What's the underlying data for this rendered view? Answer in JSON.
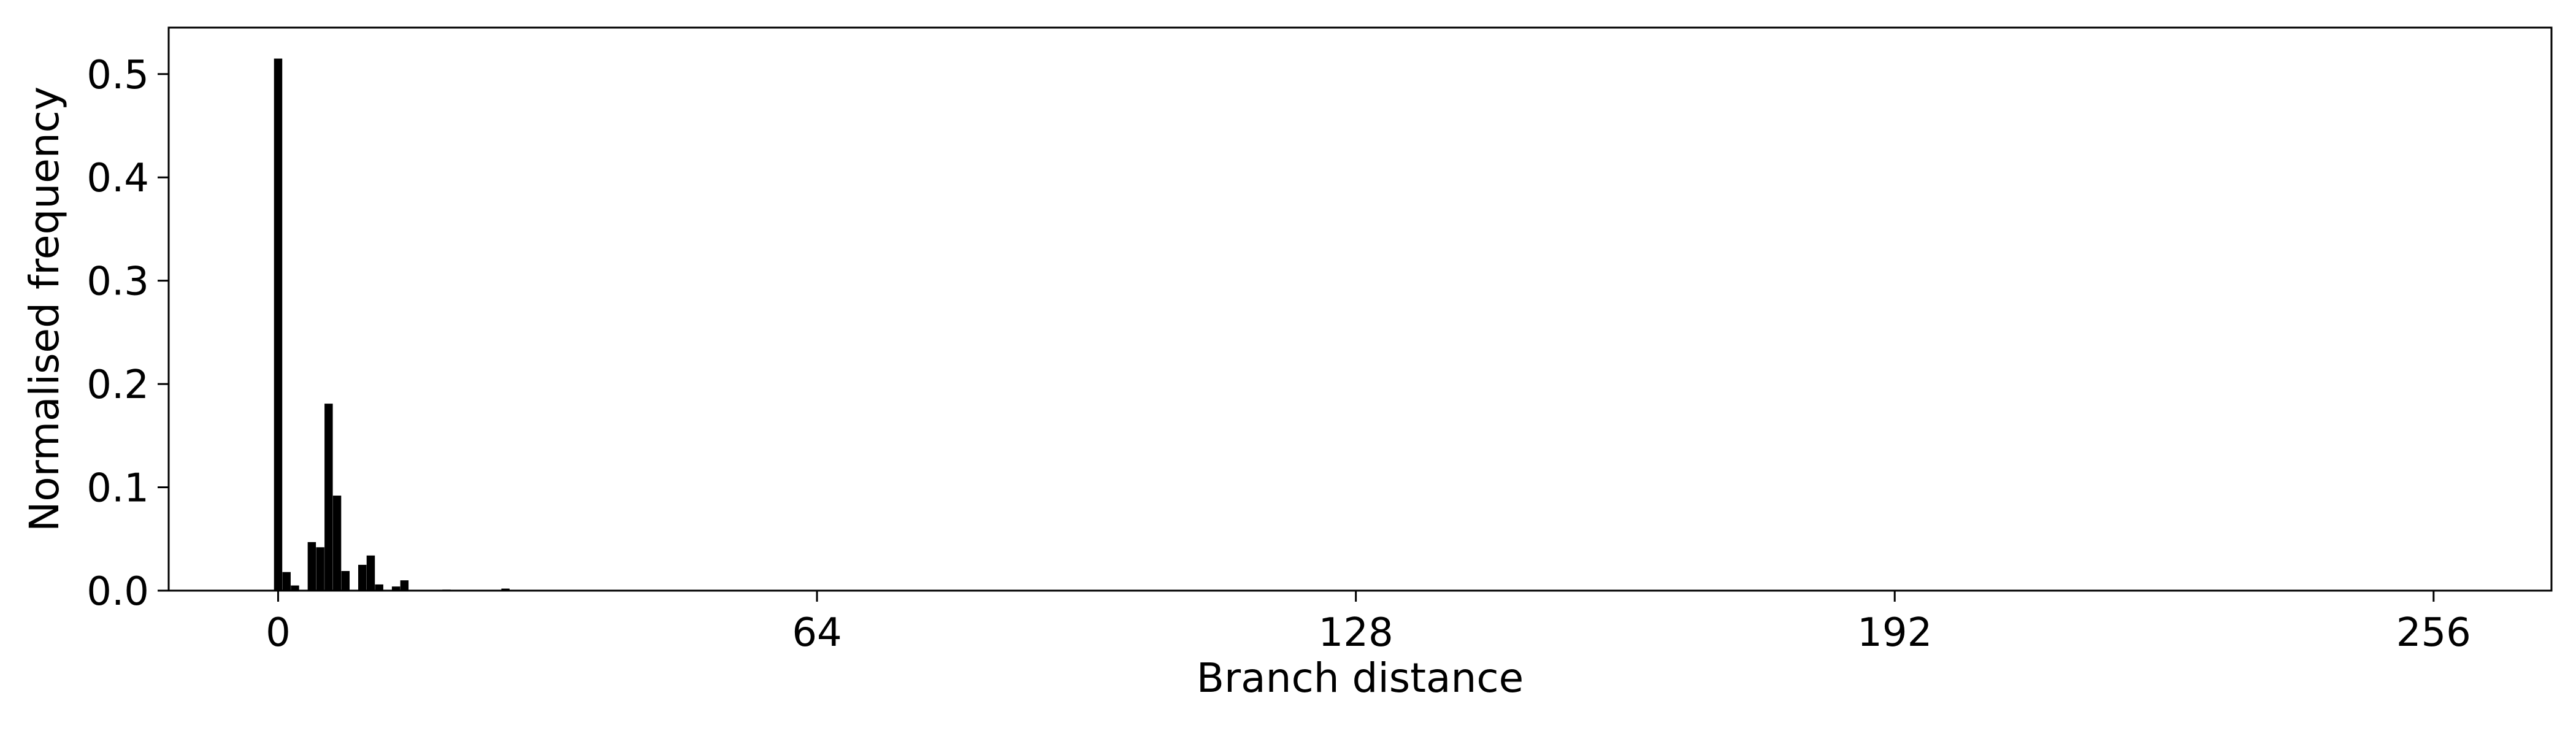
{
  "chart_data": {
    "type": "bar",
    "title": "",
    "xlabel": "Branch distance",
    "ylabel": "Normalised frequency",
    "xlim": [
      -13,
      270
    ],
    "ylim": [
      0,
      0.545
    ],
    "xticks": [
      0,
      64,
      128,
      192,
      256
    ],
    "yticks": [
      0.0,
      0.1,
      0.2,
      0.3,
      0.4,
      0.5
    ],
    "ytick_labels": [
      "0.0",
      "0.1",
      "0.2",
      "0.3",
      "0.4",
      "0.5"
    ],
    "grid": false,
    "bar_color": "#000000",
    "x": [
      0,
      1,
      2,
      3,
      4,
      5,
      6,
      7,
      8,
      9,
      10,
      11,
      12,
      13,
      14,
      15,
      16,
      17,
      18,
      19,
      20,
      21,
      22,
      23,
      24,
      25,
      26,
      27,
      28,
      29,
      30
    ],
    "values": [
      0.515,
      0.018,
      0.005,
      0.0,
      0.047,
      0.042,
      0.181,
      0.092,
      0.019,
      0.0,
      0.025,
      0.034,
      0.006,
      0.0,
      0.004,
      0.01,
      0.0,
      0.0,
      0.0,
      0.0,
      0.001,
      0.0,
      0.0,
      0.0,
      0.0,
      0.0,
      0.0,
      0.002,
      0.0,
      0.0,
      0.0
    ]
  }
}
